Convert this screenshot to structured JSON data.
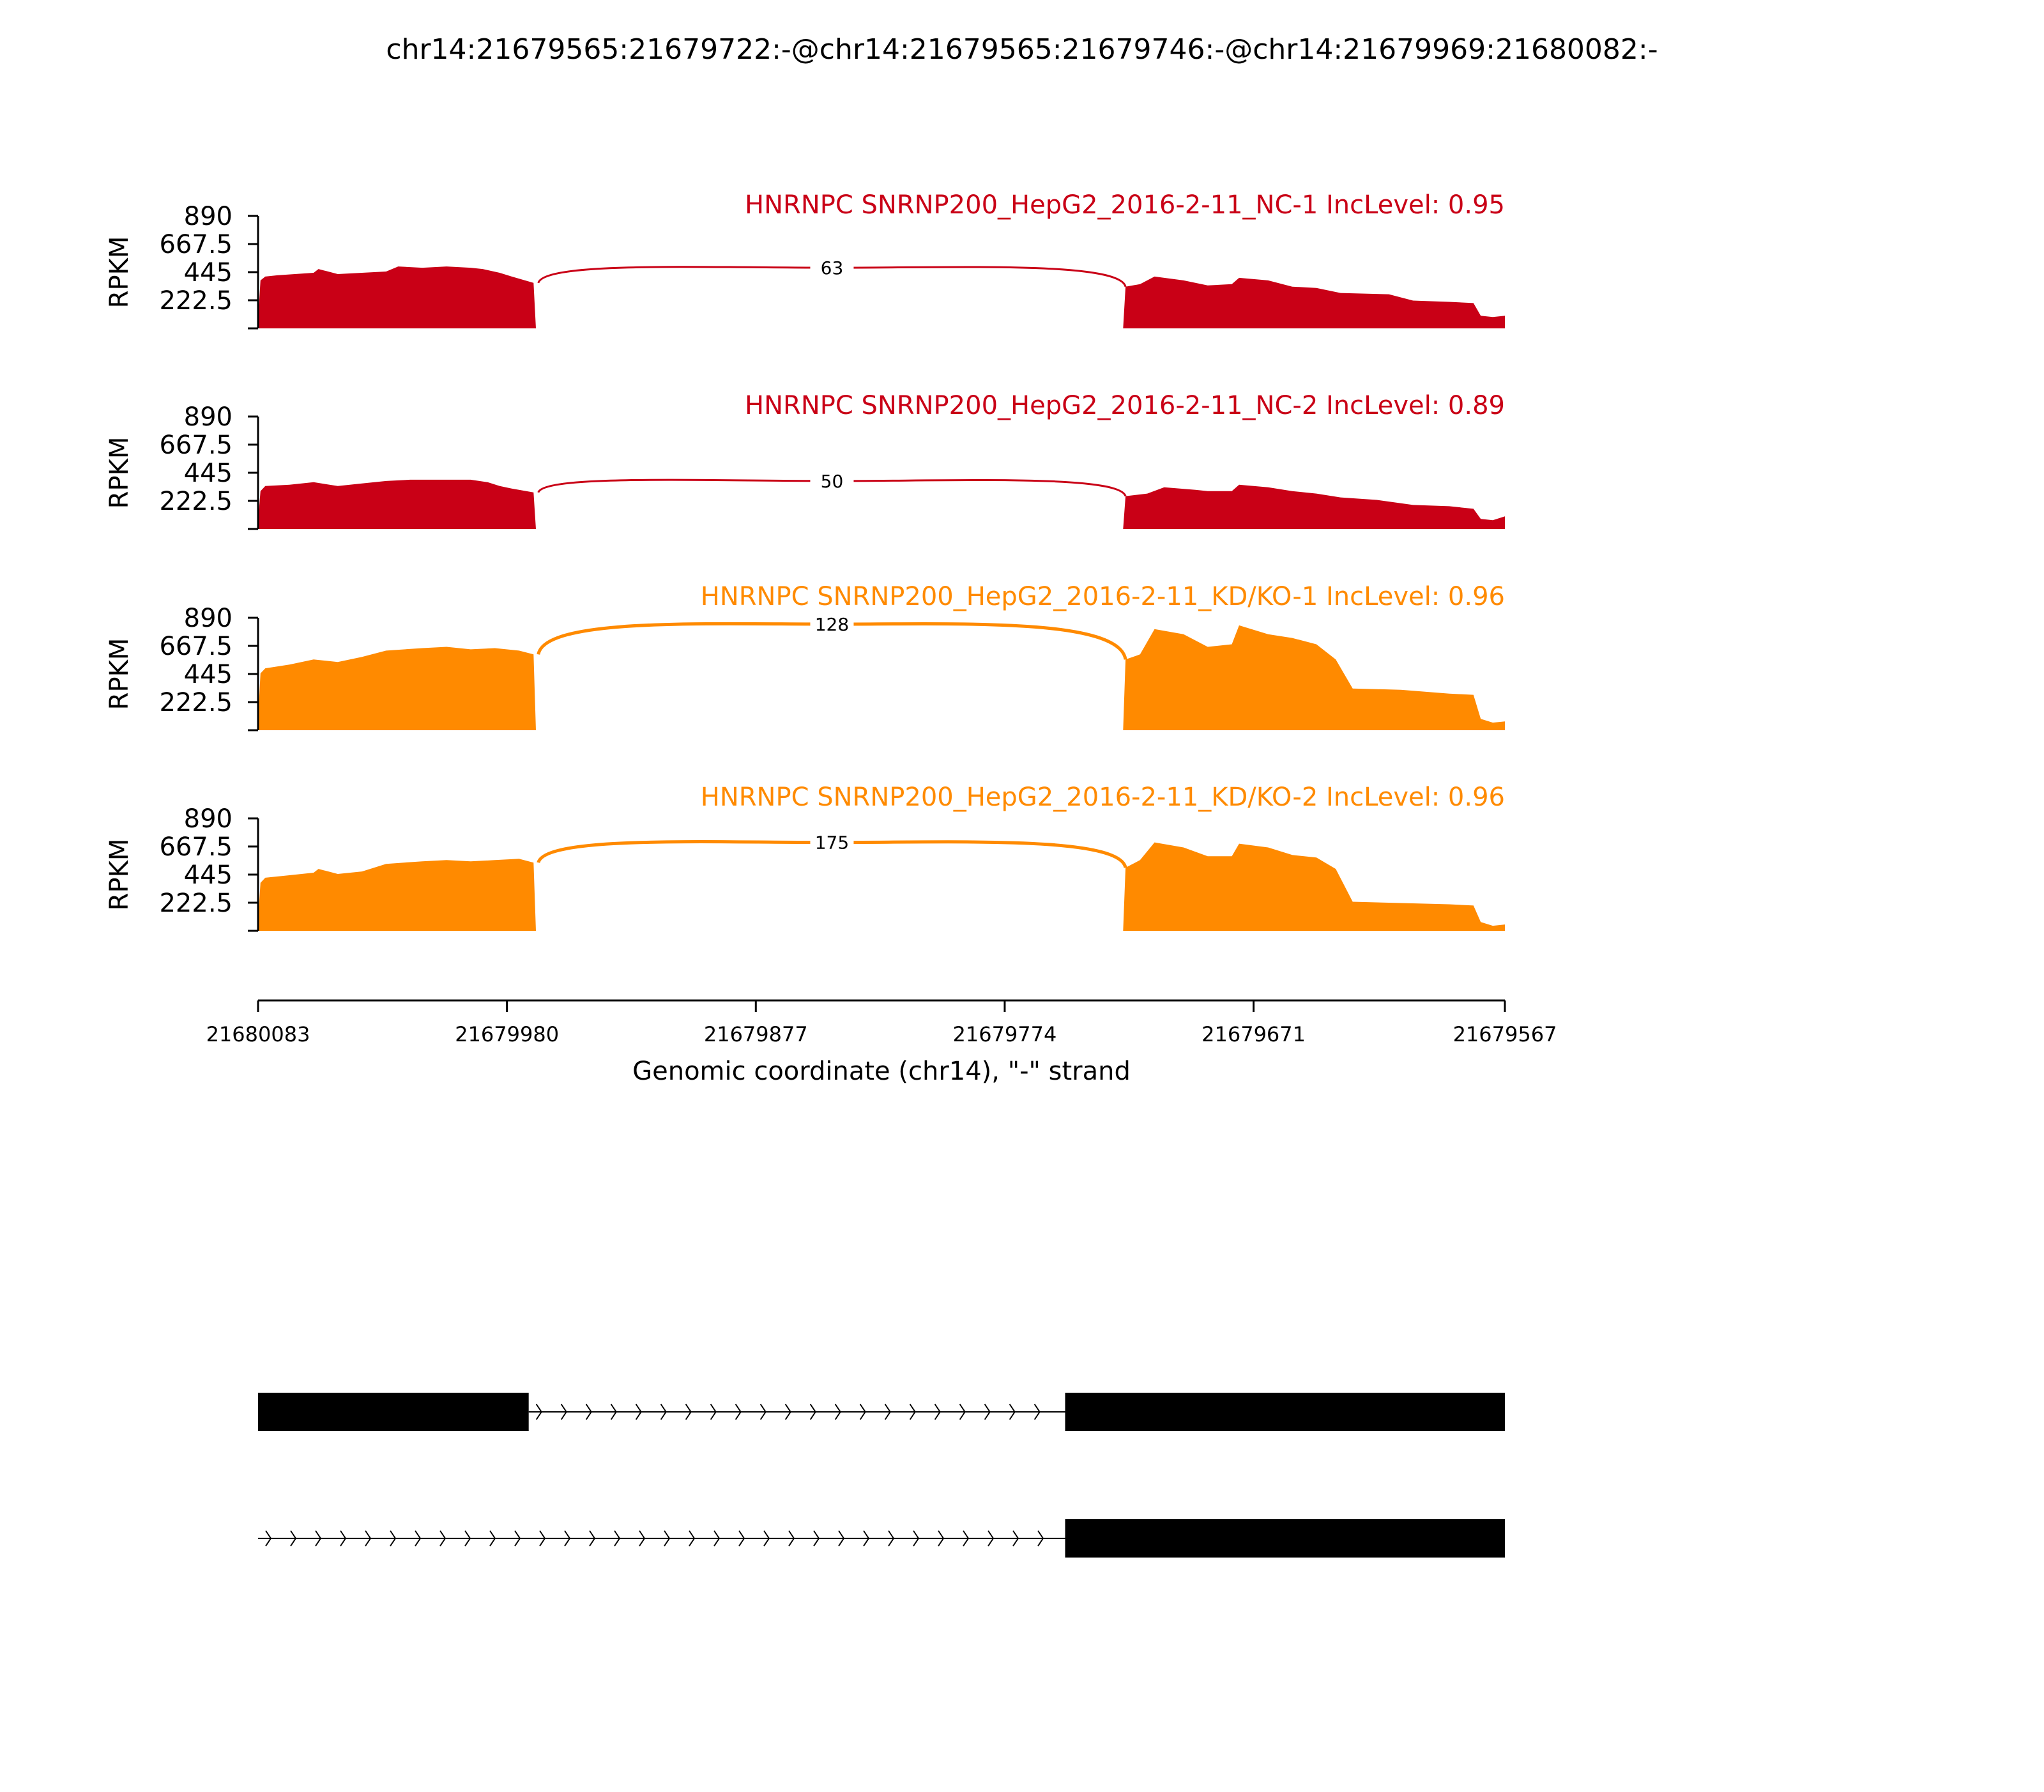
{
  "title": "chr14:21679565:21679722:-@chr14:21679565:21679746:-@chr14:21679969:21680082:-",
  "colors": {
    "nc": "#c90016",
    "kd": "#ff8a00",
    "axis": "#000000",
    "gene": "#000000"
  },
  "chart_data": {
    "type": "area",
    "title": "chr14:21679565:21679722:-@chr14:21679565:21679746:-@chr14:21679969:21680082:-",
    "xlabel": "Genomic coordinate (chr14), \"-\" strand",
    "ylabel": "RPKM",
    "xlim": [
      21680083,
      21679567
    ],
    "ylim": [
      0,
      890
    ],
    "x_ticks": [
      "21680083",
      "21679980",
      "21679877",
      "21679774",
      "21679671",
      "21679567"
    ],
    "x_tick_values": [
      21680083,
      21679980,
      21679877,
      21679774,
      21679671,
      21679567
    ],
    "y_ticks": [
      "890",
      "667.5",
      "445",
      "222.5"
    ],
    "y_tick_values": [
      890,
      667.5,
      445,
      222.5
    ],
    "tracks": [
      {
        "label": "HNRNPC SNRNP200_HepG2_2016-2-11_NC-1 IncLevel: 0.95",
        "group": "nc",
        "junction_label": "63",
        "junction_peak": 510,
        "junction_start": 21679967,
        "junction_end": 21679724,
        "coverage": [
          [
            21680083,
            60
          ],
          [
            21680082,
            380
          ],
          [
            21680080,
            410
          ],
          [
            21680075,
            420
          ],
          [
            21680060,
            440
          ],
          [
            21680058,
            470
          ],
          [
            21680050,
            430
          ],
          [
            21680040,
            440
          ],
          [
            21680030,
            450
          ],
          [
            21680025,
            490
          ],
          [
            21680015,
            480
          ],
          [
            21680005,
            490
          ],
          [
            21679995,
            480
          ],
          [
            21679990,
            470
          ],
          [
            21679983,
            440
          ],
          [
            21679978,
            410
          ],
          [
            21679969,
            360
          ],
          [
            21679968,
            0
          ],
          [
            21679725,
            0
          ],
          [
            21679724,
            330
          ],
          [
            21679718,
            350
          ],
          [
            21679712,
            410
          ],
          [
            21679700,
            380
          ],
          [
            21679690,
            340
          ],
          [
            21679680,
            350
          ],
          [
            21679677,
            400
          ],
          [
            21679665,
            380
          ],
          [
            21679655,
            330
          ],
          [
            21679645,
            320
          ],
          [
            21679635,
            280
          ],
          [
            21679615,
            270
          ],
          [
            21679605,
            220
          ],
          [
            21679590,
            210
          ],
          [
            21679580,
            200
          ],
          [
            21679577,
            100
          ],
          [
            21679572,
            90
          ],
          [
            21679567,
            100
          ]
        ]
      },
      {
        "label": "HNRNPC SNRNP200_HepG2_2016-2-11_NC-2 IncLevel: 0.89",
        "group": "nc",
        "junction_label": "50",
        "junction_peak": 410,
        "junction_start": 21679967,
        "junction_end": 21679724,
        "coverage": [
          [
            21680083,
            60
          ],
          [
            21680082,
            300
          ],
          [
            21680080,
            340
          ],
          [
            21680070,
            350
          ],
          [
            21680060,
            370
          ],
          [
            21680050,
            340
          ],
          [
            21680040,
            360
          ],
          [
            21680030,
            380
          ],
          [
            21680020,
            390
          ],
          [
            21679995,
            390
          ],
          [
            21679988,
            370
          ],
          [
            21679983,
            340
          ],
          [
            21679978,
            320
          ],
          [
            21679969,
            290
          ],
          [
            21679968,
            0
          ],
          [
            21679725,
            0
          ],
          [
            21679724,
            260
          ],
          [
            21679715,
            280
          ],
          [
            21679708,
            330
          ],
          [
            21679695,
            310
          ],
          [
            21679690,
            300
          ],
          [
            21679680,
            300
          ],
          [
            21679677,
            350
          ],
          [
            21679665,
            330
          ],
          [
            21679655,
            300
          ],
          [
            21679645,
            280
          ],
          [
            21679635,
            250
          ],
          [
            21679620,
            230
          ],
          [
            21679605,
            190
          ],
          [
            21679590,
            180
          ],
          [
            21679580,
            160
          ],
          [
            21679577,
            80
          ],
          [
            21679572,
            70
          ],
          [
            21679567,
            100
          ]
        ]
      },
      {
        "label": "HNRNPC SNRNP200_HepG2_2016-2-11_KD/KO-1 IncLevel: 0.96",
        "group": "kd",
        "junction_label": "128",
        "junction_peak": 870,
        "junction_start": 21679967,
        "junction_end": 21679724,
        "coverage": [
          [
            21680083,
            80
          ],
          [
            21680082,
            450
          ],
          [
            21680080,
            490
          ],
          [
            21680070,
            520
          ],
          [
            21680060,
            560
          ],
          [
            21680050,
            540
          ],
          [
            21680040,
            580
          ],
          [
            21680030,
            630
          ],
          [
            21680015,
            650
          ],
          [
            21680005,
            660
          ],
          [
            21679995,
            640
          ],
          [
            21679985,
            650
          ],
          [
            21679975,
            630
          ],
          [
            21679969,
            600
          ],
          [
            21679968,
            0
          ],
          [
            21679725,
            0
          ],
          [
            21679724,
            560
          ],
          [
            21679718,
            600
          ],
          [
            21679712,
            800
          ],
          [
            21679700,
            760
          ],
          [
            21679690,
            660
          ],
          [
            21679680,
            680
          ],
          [
            21679677,
            830
          ],
          [
            21679665,
            760
          ],
          [
            21679655,
            730
          ],
          [
            21679645,
            680
          ],
          [
            21679637,
            560
          ],
          [
            21679630,
            330
          ],
          [
            21679610,
            320
          ],
          [
            21679590,
            290
          ],
          [
            21679580,
            280
          ],
          [
            21679577,
            90
          ],
          [
            21679572,
            60
          ],
          [
            21679567,
            70
          ]
        ]
      },
      {
        "label": "HNRNPC SNRNP200_HepG2_2016-2-11_KD/KO-2 IncLevel: 0.96",
        "group": "kd",
        "junction_label": "175",
        "junction_peak": 730,
        "junction_start": 21679967,
        "junction_end": 21679724,
        "coverage": [
          [
            21680083,
            80
          ],
          [
            21680082,
            380
          ],
          [
            21680080,
            420
          ],
          [
            21680070,
            440
          ],
          [
            21680060,
            460
          ],
          [
            21680058,
            490
          ],
          [
            21680050,
            450
          ],
          [
            21680040,
            470
          ],
          [
            21680030,
            530
          ],
          [
            21680015,
            550
          ],
          [
            21680005,
            560
          ],
          [
            21679995,
            550
          ],
          [
            21679985,
            560
          ],
          [
            21679975,
            570
          ],
          [
            21679969,
            540
          ],
          [
            21679968,
            0
          ],
          [
            21679725,
            0
          ],
          [
            21679724,
            500
          ],
          [
            21679718,
            560
          ],
          [
            21679712,
            700
          ],
          [
            21679700,
            660
          ],
          [
            21679690,
            590
          ],
          [
            21679680,
            590
          ],
          [
            21679677,
            690
          ],
          [
            21679665,
            660
          ],
          [
            21679655,
            600
          ],
          [
            21679645,
            580
          ],
          [
            21679637,
            490
          ],
          [
            21679630,
            230
          ],
          [
            21679610,
            220
          ],
          [
            21679590,
            210
          ],
          [
            21679580,
            200
          ],
          [
            21679577,
            70
          ],
          [
            21679572,
            40
          ],
          [
            21679567,
            50
          ]
        ]
      }
    ],
    "gene_models": [
      {
        "exons": [
          [
            21680083,
            21679971
          ],
          [
            21679749,
            21679567
          ]
        ],
        "intron": [
          21679971,
          21679749
        ]
      },
      {
        "exons": [
          [
            21679749,
            21679567
          ]
        ],
        "intron": [
          21680083,
          21679749
        ]
      }
    ]
  }
}
